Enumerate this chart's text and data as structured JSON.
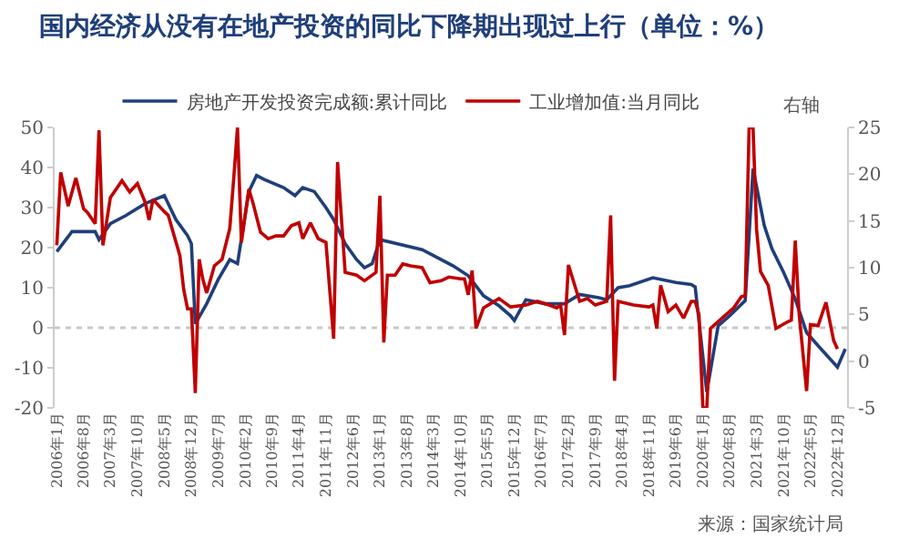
{
  "chart_data": {
    "type": "line",
    "title": "国内经济从没有在地产投资的同比下降期出现过上行（单位：%）",
    "annotations": [
      "右轴",
      "来源：国家统计局"
    ],
    "xlim": [
      "2005-12-15",
      "2023-02-15"
    ],
    "xticks": [
      {
        "value": "2006-01",
        "label": "2006年1月"
      },
      {
        "value": "2006-08",
        "label": "2006年8月"
      },
      {
        "value": "2007-03",
        "label": "2007年3月"
      },
      {
        "value": "2007-10",
        "label": "2007年10月"
      },
      {
        "value": "2008-05",
        "label": "2008年5月"
      },
      {
        "value": "2008-12",
        "label": "2008年12月"
      },
      {
        "value": "2009-07",
        "label": "2009年7月"
      },
      {
        "value": "2010-02",
        "label": "2010年2月"
      },
      {
        "value": "2010-09",
        "label": "2010年9月"
      },
      {
        "value": "2011-04",
        "label": "2011年4月"
      },
      {
        "value": "2011-11",
        "label": "2011年11月"
      },
      {
        "value": "2012-06",
        "label": "2012年6月"
      },
      {
        "value": "2013-01",
        "label": "2013年1月"
      },
      {
        "value": "2013-08",
        "label": "2013年8月"
      },
      {
        "value": "2014-03",
        "label": "2014年3月"
      },
      {
        "value": "2014-10",
        "label": "2014年10月"
      },
      {
        "value": "2015-05",
        "label": "2015年5月"
      },
      {
        "value": "2015-12",
        "label": "2015年12月"
      },
      {
        "value": "2016-07",
        "label": "2016年7月"
      },
      {
        "value": "2017-02",
        "label": "2017年2月"
      },
      {
        "value": "2017-09",
        "label": "2017年9月"
      },
      {
        "value": "2018-04",
        "label": "2018年4月"
      },
      {
        "value": "2018-11",
        "label": "2018年11月"
      },
      {
        "value": "2019-06",
        "label": "2019年6月"
      },
      {
        "value": "2020-01",
        "label": "2020年1月"
      },
      {
        "value": "2020-08",
        "label": "2020年8月"
      },
      {
        "value": "2021-03",
        "label": "2021年3月"
      },
      {
        "value": "2021-10",
        "label": "2021年10月"
      },
      {
        "value": "2022-05",
        "label": "2022年5月"
      },
      {
        "value": "2022-12",
        "label": "2022年12月"
      }
    ],
    "ylim": [
      -20,
      50
    ],
    "yticks": [
      -20,
      -10,
      0,
      10,
      20,
      30,
      40,
      50
    ],
    "y2lim": [
      -5,
      25
    ],
    "y2ticks": [
      -5,
      0,
      5,
      10,
      15,
      20,
      25
    ],
    "ref_lines": [
      {
        "axis": "y",
        "value": 0,
        "color": "#c8c8c8",
        "line_style": "dotted"
      }
    ],
    "legend": "top",
    "grid": false,
    "marker": "none",
    "line_style": "solid",
    "series": [
      {
        "name": "房地产开发投资完成额:累计同比",
        "color": "#1f3f7a",
        "x": [
          "2006-01",
          "2006-05",
          "2006-11",
          "2006-12",
          "2007-03",
          "2007-07",
          "2007-12",
          "2008-05",
          "2008-08",
          "2008-11",
          "2008-12",
          "2009-01",
          "2009-04",
          "2009-07",
          "2009-10",
          "2009-12",
          "2010-03",
          "2010-05",
          "2010-07",
          "2010-12",
          "2011-03",
          "2011-05",
          "2011-08",
          "2011-11",
          "2012-01",
          "2012-04",
          "2012-07",
          "2012-09",
          "2012-11",
          "2013-01",
          "2013-12",
          "2014-05",
          "2014-08",
          "2014-12",
          "2015-04",
          "2015-08",
          "2015-11",
          "2015-12",
          "2016-03",
          "2016-08",
          "2017-01",
          "2017-05",
          "2017-10",
          "2017-12",
          "2018-03",
          "2018-06",
          "2018-12",
          "2019-06",
          "2019-10",
          "2019-11",
          "2020-02",
          "2020-05",
          "2020-08",
          "2020-12",
          "2021-02",
          "2021-05",
          "2021-07",
          "2021-10",
          "2022-01",
          "2022-04",
          "2022-07",
          "2022-12",
          "2023-02"
        ],
        "values": [
          19,
          24,
          24,
          22,
          26,
          28,
          31,
          33,
          27,
          23,
          21,
          1,
          6,
          12,
          17,
          16,
          34,
          38,
          37,
          35,
          33,
          35,
          34,
          30,
          27,
          21,
          17,
          15,
          16,
          22,
          19.5,
          17,
          15.5,
          13,
          8,
          5.5,
          3,
          1.8,
          7,
          6,
          6,
          8.3,
          7.5,
          7,
          10,
          10.5,
          12.5,
          11.3,
          10.8,
          10.2,
          -16,
          0.5,
          3,
          6.8,
          39.7,
          25.5,
          19.7,
          13.8,
          7.2,
          -1.2,
          -4.5,
          -9.8,
          -5.3
        ]
      },
      {
        "name": "工业增加值:当月同比",
        "color": "#c00000",
        "axis": "y2",
        "x": [
          "2006-01",
          "2006-02",
          "2006-04",
          "2006-06",
          "2006-08",
          "2006-09",
          "2006-11",
          "2006-12",
          "2007-01",
          "2007-03",
          "2007-06",
          "2007-08",
          "2007-10",
          "2007-12",
          "2008-01",
          "2008-02",
          "2008-05",
          "2008-06",
          "2008-09",
          "2008-10",
          "2008-11",
          "2008-12",
          "2009-01",
          "2009-02",
          "2009-03",
          "2009-04",
          "2009-06",
          "2009-08",
          "2009-10",
          "2009-11",
          "2009-12",
          "2010-01",
          "2010-03",
          "2010-04",
          "2010-06",
          "2010-08",
          "2010-10",
          "2010-12",
          "2011-02",
          "2011-04",
          "2011-05",
          "2011-07",
          "2011-09",
          "2011-11",
          "2012-01",
          "2012-02",
          "2012-04",
          "2012-07",
          "2012-09",
          "2012-12",
          "2013-01",
          "2013-02",
          "2013-03",
          "2013-05",
          "2013-07",
          "2013-09",
          "2013-12",
          "2014-02",
          "2014-05",
          "2014-07",
          "2014-10",
          "2014-11",
          "2014-12",
          "2015-01",
          "2015-02",
          "2015-04",
          "2015-08",
          "2015-11",
          "2016-03",
          "2016-06",
          "2016-09",
          "2016-11",
          "2016-12",
          "2017-01",
          "2017-02",
          "2017-05",
          "2017-07",
          "2017-09",
          "2017-12",
          "2018-01",
          "2018-02",
          "2018-03",
          "2018-07",
          "2018-11",
          "2018-12",
          "2019-01",
          "2019-02",
          "2019-04",
          "2019-06",
          "2019-08",
          "2019-10",
          "2019-11",
          "2019-12",
          "2020-01",
          "2020-02",
          "2020-03",
          "2020-06",
          "2020-09",
          "2020-11",
          "2020-12",
          "2021-01",
          "2021-02",
          "2021-03",
          "2021-04",
          "2021-06",
          "2021-08",
          "2021-11",
          "2021-12",
          "2022-01",
          "2022-02",
          "2022-04",
          "2022-05",
          "2022-07",
          "2022-09",
          "2022-11",
          "2022-12"
        ],
        "values": [
          12.4,
          20.2,
          16.6,
          19.6,
          16.3,
          15.9,
          14.7,
          24.7,
          12.4,
          17.5,
          19.3,
          18.1,
          19,
          17,
          15.1,
          17.3,
          16,
          15.6,
          11.3,
          7.7,
          5.6,
          5.6,
          -3.4,
          10.9,
          8.8,
          7.3,
          10.2,
          10.9,
          14.2,
          19.5,
          25,
          12.7,
          18.4,
          17,
          13.8,
          13.1,
          13.4,
          13.4,
          14.5,
          14.8,
          13.1,
          14.8,
          13.1,
          12.7,
          2.4,
          21.3,
          9.5,
          9.2,
          8.6,
          9.5,
          17.7,
          2,
          9.2,
          9.2,
          10.4,
          10.2,
          10,
          8.4,
          8.6,
          9,
          8.8,
          8.8,
          7.1,
          9.7,
          3.5,
          5.7,
          6.7,
          5.8,
          6,
          6.4,
          6,
          5.7,
          6,
          2.8,
          10.3,
          6.4,
          6.7,
          6,
          6.4,
          15.6,
          -2.1,
          6.4,
          6,
          5.8,
          6,
          3.5,
          8.1,
          5.3,
          6,
          4.6,
          6.4,
          6.4,
          5,
          -5,
          -5,
          3.5,
          4.6,
          5.7,
          6.9,
          7,
          25,
          25,
          14.1,
          9.6,
          8.1,
          3.5,
          4.2,
          4.4,
          12.9,
          5,
          -3.2,
          3.9,
          3.8,
          6.3,
          2.2,
          1.3
        ]
      }
    ]
  }
}
